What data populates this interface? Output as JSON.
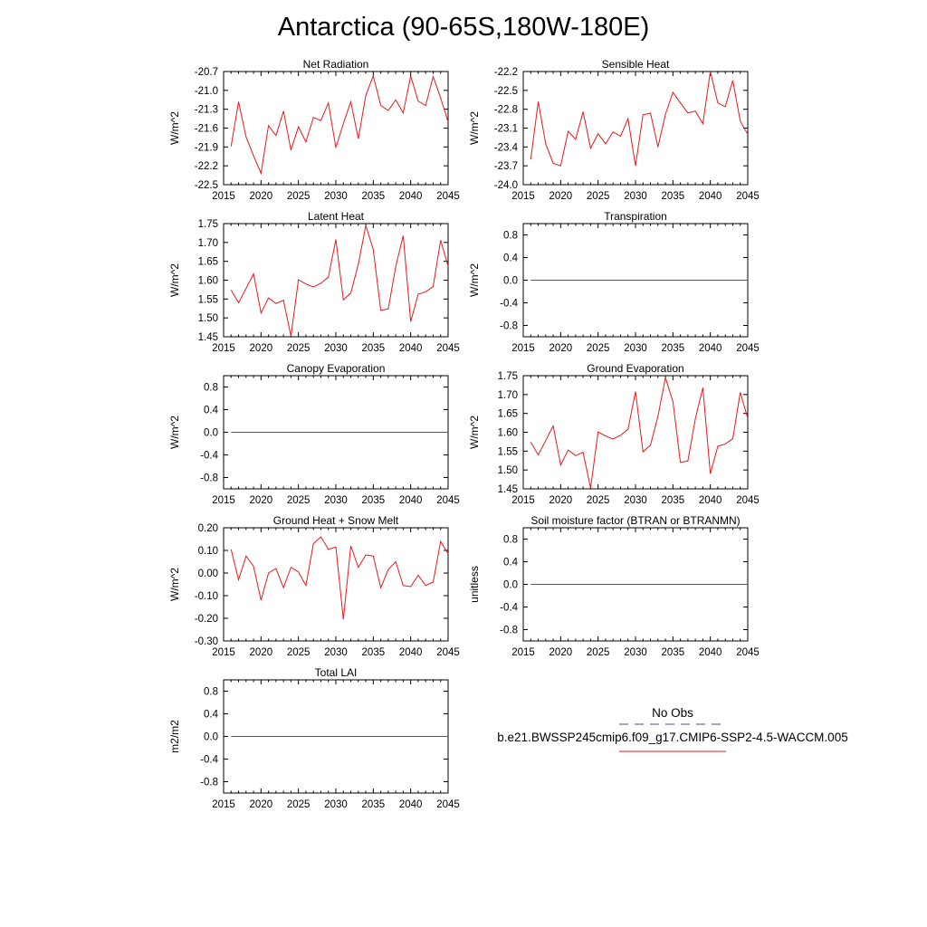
{
  "figure": {
    "title": "Antarctica (90-65S,180W-180E)"
  },
  "legend": {
    "obs_label": "No Obs",
    "obs_color": "#4a4aa0",
    "obs_style": "dashed",
    "model_label": "b.e21.BWSSP245cmip6.f09_g17.CMIP6-SSP2-4.5-WACCM.005",
    "model_color": "#e31a1c",
    "model_style": "solid"
  },
  "chart_data": [
    {
      "type": "line",
      "title": "Net Radiation",
      "ylabel": "W/m^2",
      "xlim": [
        2015,
        2045
      ],
      "ylim": [
        -22.5,
        -20.7
      ],
      "xticks": [
        2015,
        2020,
        2025,
        2030,
        2035,
        2040,
        2045
      ],
      "yticks": [
        -20.7,
        -21.0,
        -21.3,
        -21.6,
        -21.9,
        -22.2,
        -22.5
      ],
      "ytick_labels": [
        "-20.7",
        "-21.0",
        "-21.3",
        "-21.6",
        "-21.9",
        "-22.2",
        "-22.5"
      ],
      "series": [
        {
          "color": "#e31a1c",
          "x": [
            2016,
            2017,
            2018,
            2019,
            2020,
            2021,
            2022,
            2023,
            2024,
            2025,
            2026,
            2027,
            2028,
            2029,
            2030,
            2031,
            2032,
            2033,
            2034,
            2035,
            2036,
            2037,
            2038,
            2039,
            2040,
            2041,
            2042,
            2043,
            2044,
            2045
          ],
          "values": [
            -21.89,
            -21.18,
            -21.74,
            -22.04,
            -22.32,
            -21.56,
            -21.72,
            -21.33,
            -21.95,
            -21.58,
            -21.82,
            -21.43,
            -21.48,
            -21.2,
            -21.91,
            -21.53,
            -21.18,
            -21.77,
            -21.08,
            -20.77,
            -21.24,
            -21.32,
            -21.15,
            -21.36,
            -20.77,
            -21.17,
            -21.24,
            -20.78,
            -21.12,
            -21.5
          ]
        }
      ]
    },
    {
      "type": "line",
      "title": "Sensible Heat",
      "ylabel": "W/m^2",
      "xlim": [
        2015,
        2045
      ],
      "ylim": [
        -24.0,
        -22.2
      ],
      "xticks": [
        2015,
        2020,
        2025,
        2030,
        2035,
        2040,
        2045
      ],
      "yticks": [
        -22.2,
        -22.5,
        -22.8,
        -23.1,
        -23.4,
        -23.7,
        -24.0
      ],
      "ytick_labels": [
        "-22.2",
        "-22.5",
        "-22.8",
        "-23.1",
        "-23.4",
        "-23.7",
        "-24.0"
      ],
      "series": [
        {
          "color": "#e31a1c",
          "x": [
            2016,
            2017,
            2018,
            2019,
            2020,
            2021,
            2022,
            2023,
            2024,
            2025,
            2026,
            2027,
            2028,
            2029,
            2030,
            2031,
            2032,
            2033,
            2034,
            2035,
            2036,
            2037,
            2038,
            2039,
            2040,
            2041,
            2042,
            2043,
            2044,
            2045
          ],
          "values": [
            -23.6,
            -22.68,
            -23.35,
            -23.66,
            -23.7,
            -23.15,
            -23.28,
            -22.84,
            -23.42,
            -23.19,
            -23.35,
            -23.16,
            -23.23,
            -22.95,
            -23.7,
            -22.89,
            -22.86,
            -23.4,
            -22.88,
            -22.53,
            -22.7,
            -22.86,
            -22.83,
            -23.03,
            -22.2,
            -22.7,
            -22.76,
            -22.34,
            -22.99,
            -23.2
          ]
        }
      ]
    },
    {
      "type": "line",
      "title": "Latent Heat",
      "ylabel": "W/m^2",
      "xlim": [
        2015,
        2045
      ],
      "ylim": [
        1.45,
        1.75
      ],
      "xticks": [
        2015,
        2020,
        2025,
        2030,
        2035,
        2040,
        2045
      ],
      "yticks": [
        1.45,
        1.5,
        1.55,
        1.6,
        1.65,
        1.7,
        1.75
      ],
      "ytick_labels": [
        "1.45",
        "1.50",
        "1.55",
        "1.60",
        "1.65",
        "1.70",
        "1.75"
      ],
      "series": [
        {
          "color": "#e31a1c",
          "x": [
            2016,
            2017,
            2018,
            2019,
            2020,
            2021,
            2022,
            2023,
            2024,
            2025,
            2026,
            2027,
            2028,
            2029,
            2030,
            2031,
            2032,
            2033,
            2034,
            2035,
            2036,
            2037,
            2038,
            2039,
            2040,
            2041,
            2042,
            2043,
            2044,
            2045
          ],
          "values": [
            1.574,
            1.54,
            1.578,
            1.617,
            1.513,
            1.553,
            1.538,
            1.547,
            1.452,
            1.601,
            1.59,
            1.582,
            1.592,
            1.608,
            1.708,
            1.548,
            1.566,
            1.642,
            1.745,
            1.681,
            1.52,
            1.524,
            1.636,
            1.718,
            1.49,
            1.563,
            1.569,
            1.583,
            1.706,
            1.637
          ]
        }
      ]
    },
    {
      "type": "line",
      "title": "Transpiration",
      "ylabel": "W/m^2",
      "xlim": [
        2015,
        2045
      ],
      "ylim": [
        -1.0,
        1.0
      ],
      "xticks": [
        2015,
        2020,
        2025,
        2030,
        2035,
        2040,
        2045
      ],
      "yticks": [
        0.8,
        0.4,
        0.0,
        -0.4,
        -0.8
      ],
      "ytick_labels": [
        "0.8",
        "0.4",
        "0.0",
        "-0.4",
        "-0.8"
      ],
      "series": [
        {
          "color": "#e31a1c",
          "x": [
            2016,
            2045
          ],
          "values": [
            0.0,
            0.0
          ]
        }
      ]
    },
    {
      "type": "line",
      "title": "Canopy Evaporation",
      "ylabel": "W/m^2",
      "xlim": [
        2015,
        2045
      ],
      "ylim": [
        -1.0,
        1.0
      ],
      "xticks": [
        2015,
        2020,
        2025,
        2030,
        2035,
        2040,
        2045
      ],
      "yticks": [
        0.8,
        0.4,
        0.0,
        -0.4,
        -0.8
      ],
      "ytick_labels": [
        "0.8",
        "0.4",
        "0.0",
        "-0.4",
        "-0.8"
      ],
      "series": [
        {
          "color": "#e31a1c",
          "x": [
            2016,
            2045
          ],
          "values": [
            0.0,
            0.0
          ]
        }
      ]
    },
    {
      "type": "line",
      "title": "Ground Evaporation",
      "ylabel": "W/m^2",
      "xlim": [
        2015,
        2045
      ],
      "ylim": [
        1.45,
        1.75
      ],
      "xticks": [
        2015,
        2020,
        2025,
        2030,
        2035,
        2040,
        2045
      ],
      "yticks": [
        1.45,
        1.5,
        1.55,
        1.6,
        1.65,
        1.7,
        1.75
      ],
      "ytick_labels": [
        "1.45",
        "1.50",
        "1.55",
        "1.60",
        "1.65",
        "1.70",
        "1.75"
      ],
      "series": [
        {
          "color": "#e31a1c",
          "x": [
            2016,
            2017,
            2018,
            2019,
            2020,
            2021,
            2022,
            2023,
            2024,
            2025,
            2026,
            2027,
            2028,
            2029,
            2030,
            2031,
            2032,
            2033,
            2034,
            2035,
            2036,
            2037,
            2038,
            2039,
            2040,
            2041,
            2042,
            2043,
            2044,
            2045
          ],
          "values": [
            1.574,
            1.54,
            1.578,
            1.617,
            1.513,
            1.553,
            1.538,
            1.547,
            1.452,
            1.601,
            1.59,
            1.582,
            1.592,
            1.608,
            1.708,
            1.548,
            1.566,
            1.642,
            1.745,
            1.681,
            1.52,
            1.524,
            1.636,
            1.718,
            1.49,
            1.563,
            1.569,
            1.583,
            1.706,
            1.637
          ]
        }
      ]
    },
    {
      "type": "line",
      "title": "Ground Heat + Snow Melt",
      "ylabel": "W/m^2",
      "xlim": [
        2015,
        2045
      ],
      "ylim": [
        -0.3,
        0.2
      ],
      "xticks": [
        2015,
        2020,
        2025,
        2030,
        2035,
        2040,
        2045
      ],
      "yticks": [
        0.2,
        0.1,
        0.0,
        -0.1,
        -0.2,
        -0.3
      ],
      "ytick_labels": [
        "0.20",
        "0.10",
        "0.00",
        "-0.10",
        "-0.20",
        "-0.30"
      ],
      "series": [
        {
          "color": "#e31a1c",
          "x": [
            2016,
            2017,
            2018,
            2019,
            2020,
            2021,
            2022,
            2023,
            2024,
            2025,
            2026,
            2027,
            2028,
            2029,
            2030,
            2031,
            2032,
            2033,
            2034,
            2035,
            2036,
            2037,
            2038,
            2039,
            2040,
            2041,
            2042,
            2043,
            2044,
            2045
          ],
          "values": [
            0.105,
            -0.03,
            0.075,
            0.03,
            -0.12,
            0.0,
            0.02,
            -0.065,
            0.025,
            0.005,
            -0.055,
            0.13,
            0.16,
            0.105,
            0.115,
            -0.205,
            0.12,
            0.025,
            0.08,
            0.075,
            -0.065,
            0.015,
            0.05,
            -0.055,
            -0.06,
            -0.01,
            -0.055,
            -0.04,
            0.14,
            0.085
          ]
        }
      ]
    },
    {
      "type": "line",
      "title": "Soil moisture factor (BTRAN or BTRANMN)",
      "ylabel": "unitless",
      "xlim": [
        2015,
        2045
      ],
      "ylim": [
        -1.0,
        1.0
      ],
      "xticks": [
        2015,
        2020,
        2025,
        2030,
        2035,
        2040,
        2045
      ],
      "yticks": [
        0.8,
        0.4,
        0.0,
        -0.4,
        -0.8
      ],
      "ytick_labels": [
        "0.8",
        "0.4",
        "0.0",
        "-0.4",
        "-0.8"
      ],
      "series": [
        {
          "color": "#e31a1c",
          "x": [
            2016,
            2045
          ],
          "values": [
            0.0,
            0.0
          ]
        }
      ]
    },
    {
      "type": "line",
      "title": "Total LAI",
      "ylabel": "m2/m2",
      "xlim": [
        2015,
        2045
      ],
      "ylim": [
        -1.0,
        1.0
      ],
      "xticks": [
        2015,
        2020,
        2025,
        2030,
        2035,
        2040,
        2045
      ],
      "yticks": [
        0.8,
        0.4,
        0.0,
        -0.4,
        -0.8
      ],
      "ytick_labels": [
        "0.8",
        "0.4",
        "0.0",
        "-0.4",
        "-0.8"
      ],
      "series": [
        {
          "color": "#e31a1c",
          "x": [
            2016,
            2045
          ],
          "values": [
            0.0,
            0.0
          ]
        }
      ]
    }
  ]
}
